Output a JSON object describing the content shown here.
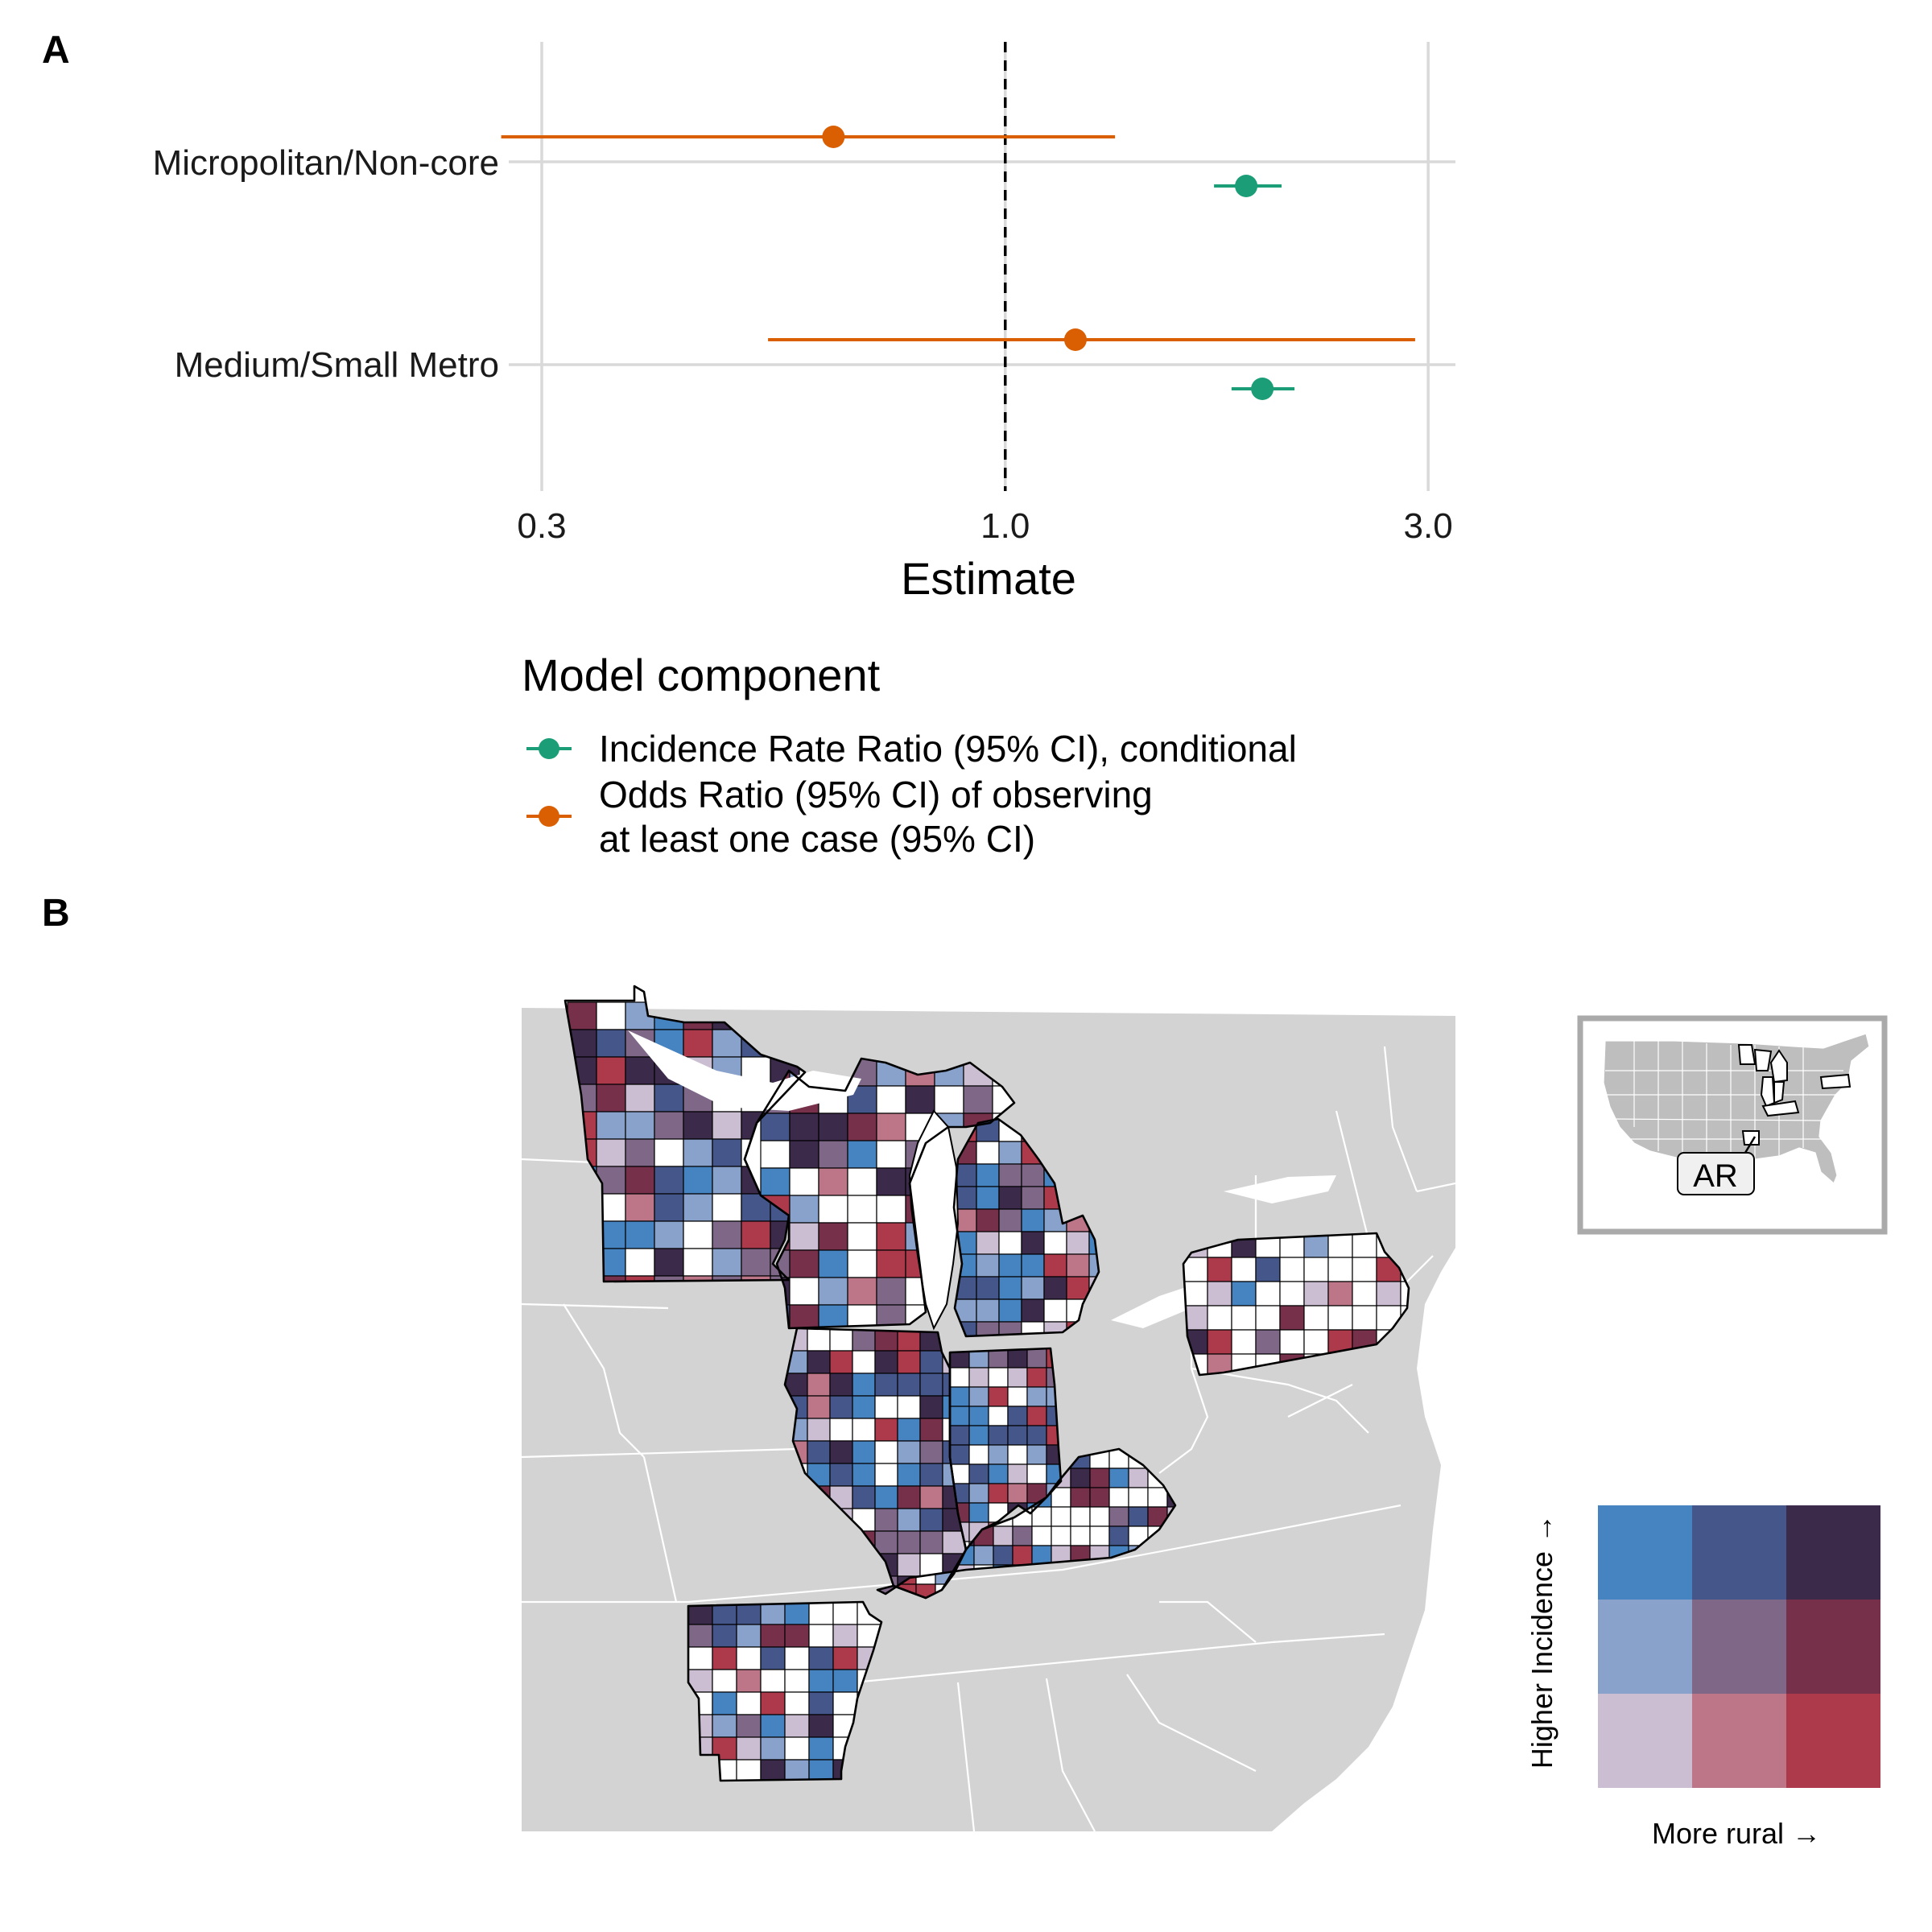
{
  "panels": {
    "a_label": "A",
    "b_label": "B"
  },
  "chart_data": {
    "type": "forest",
    "x_scale": "log",
    "x_ticks": [
      0.3,
      1.0,
      3.0
    ],
    "x_tick_labels": [
      "0.3",
      "1.0",
      "3.0"
    ],
    "x_lim": [
      0.28,
      3.2
    ],
    "reference_line": 1.0,
    "xlabel": "Estimate",
    "categories": [
      "Micropolitan/Non-core",
      "Medium/Small Metro"
    ],
    "legend_title": "Model component",
    "series": [
      {
        "name": "Incidence Rate Ratio (95% CI), conditional",
        "color": "#1b9e77",
        "points": [
          {
            "category": "Micropolitan/Non-core",
            "estimate": 1.87,
            "lower": 1.72,
            "upper": 2.05
          },
          {
            "category": "Medium/Small Metro",
            "estimate": 1.95,
            "lower": 1.8,
            "upper": 2.12
          }
        ]
      },
      {
        "name_lines": [
          "Odds Ratio (95% CI) of observing",
          "at least one case (95% CI)"
        ],
        "color": "#d95f02",
        "points": [
          {
            "category": "Micropolitan/Non-core",
            "estimate": 0.64,
            "lower": 0.27,
            "upper": 1.33
          },
          {
            "category": "Medium/Small Metro",
            "estimate": 1.2,
            "lower": 0.54,
            "upper": 2.9
          }
        ]
      }
    ]
  },
  "map": {
    "inset_label": "AR",
    "legend": {
      "x_label": "More rural →",
      "y_label": "Higher Incidence →",
      "grid_colors": [
        [
          "#4683c1",
          "#45578a",
          "#3b2a4a"
        ],
        [
          "#88a2cc",
          "#7f6887",
          "#77304a"
        ],
        [
          "#cbbed3",
          "#bc7688",
          "#ad3a4b"
        ]
      ]
    },
    "colors": {
      "background_land": "#d3d3d3",
      "state_border": "#ffffff",
      "county_border": "#000000",
      "no_data": "#ffffff"
    }
  }
}
